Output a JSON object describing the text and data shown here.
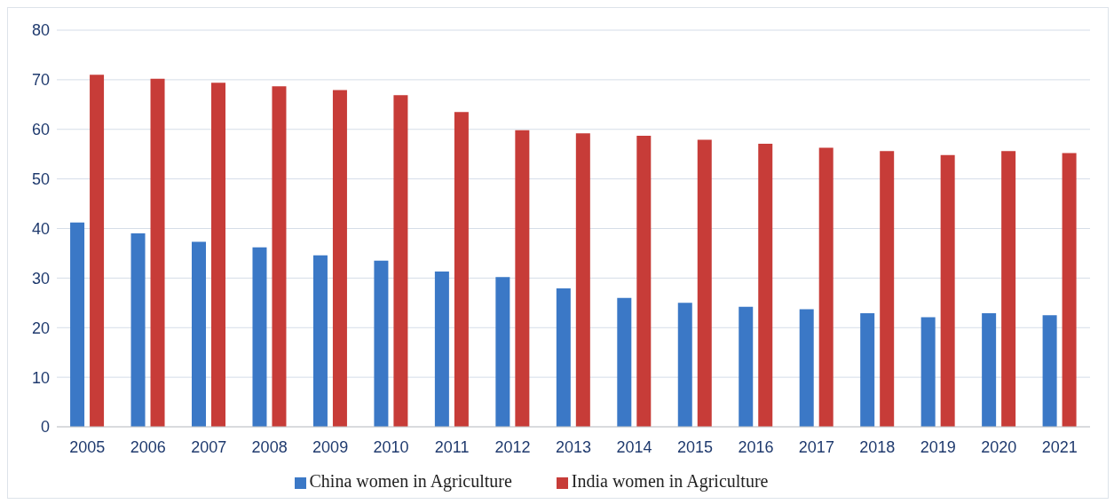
{
  "chart_data": {
    "type": "bar",
    "categories": [
      "2005",
      "2006",
      "2007",
      "2008",
      "2009",
      "2010",
      "2011",
      "2012",
      "2013",
      "2014",
      "2015",
      "2016",
      "2017",
      "2018",
      "2019",
      "2020",
      "2021"
    ],
    "series": [
      {
        "name": "China women in Agriculture",
        "color": "#3b78c6",
        "values": [
          41.2,
          39.0,
          37.3,
          36.2,
          34.6,
          33.5,
          31.3,
          30.2,
          27.9,
          26.0,
          25.0,
          24.2,
          23.7,
          22.9,
          22.1,
          22.9,
          22.5
        ]
      },
      {
        "name": "India women in Agriculture",
        "color": "#c73c38",
        "values": [
          71.0,
          70.2,
          69.4,
          68.7,
          67.9,
          66.9,
          63.5,
          59.8,
          59.2,
          58.7,
          57.9,
          57.1,
          56.3,
          55.6,
          54.8,
          55.6,
          55.2
        ]
      }
    ],
    "ylim": [
      0,
      80
    ],
    "yticks": [
      0,
      10,
      20,
      30,
      40,
      50,
      60,
      70,
      80
    ],
    "grid": "y",
    "legend": "bottom"
  }
}
